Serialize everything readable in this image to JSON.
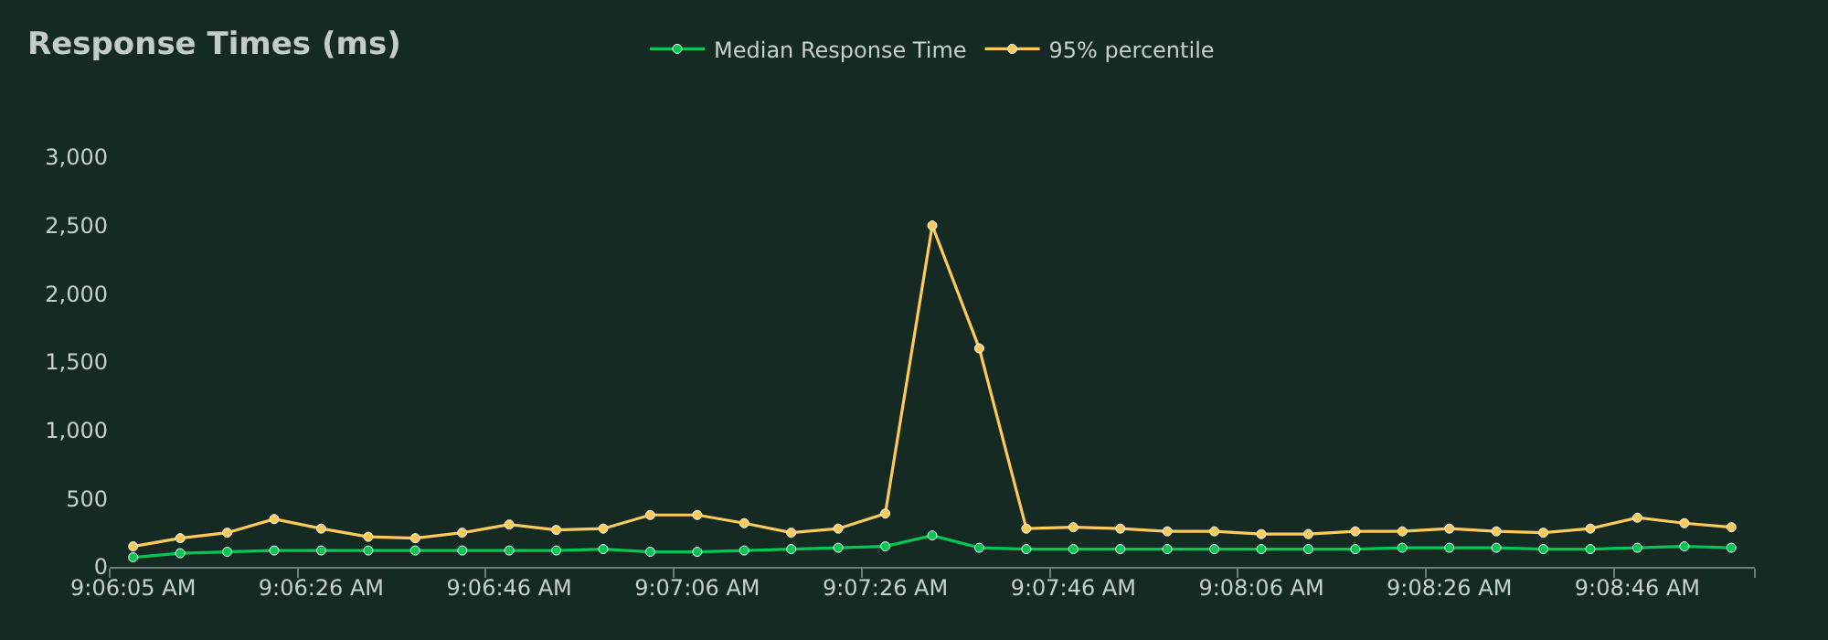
{
  "chart_data": {
    "type": "line",
    "title": "Response Times (ms)",
    "categories": [
      "9:06:05 AM",
      null,
      null,
      null,
      "9:06:26 AM",
      null,
      null,
      null,
      "9:06:46 AM",
      null,
      null,
      null,
      "9:07:06 AM",
      null,
      null,
      null,
      "9:07:26 AM",
      null,
      null,
      null,
      "9:07:46 AM",
      null,
      null,
      null,
      "9:08:06 AM",
      null,
      null,
      null,
      "9:08:26 AM",
      null,
      null,
      null,
      "9:08:46 AM",
      null,
      null
    ],
    "series": [
      {
        "name": "Median Response Time",
        "color": "#00c853",
        "values": [
          70,
          100,
          110,
          120,
          120,
          120,
          120,
          120,
          120,
          120,
          130,
          110,
          110,
          120,
          130,
          140,
          150,
          230,
          140,
          130,
          130,
          130,
          130,
          130,
          130,
          130,
          130,
          140,
          140,
          140,
          130,
          130,
          140,
          150,
          140
        ]
      },
      {
        "name": "95% percentile",
        "color": "#ffca5a",
        "values": [
          150,
          210,
          250,
          350,
          280,
          220,
          210,
          250,
          310,
          270,
          280,
          380,
          380,
          320,
          250,
          280,
          390,
          2500,
          1600,
          280,
          290,
          280,
          260,
          260,
          240,
          240,
          260,
          260,
          280,
          260,
          250,
          280,
          360,
          320,
          290
        ]
      }
    ],
    "ylim": [
      0,
      3000
    ],
    "yticks": [
      0,
      500,
      {
        "value": 1000,
        "label": "1,000"
      },
      {
        "value": 1500,
        "label": "1,500"
      },
      {
        "value": 2000,
        "label": "2,000"
      },
      {
        "value": 2500,
        "label": "2,500"
      },
      {
        "value": 3000,
        "label": "3,000"
      }
    ],
    "grid": false,
    "legend": "top",
    "marker": "circle",
    "line_style": "solid"
  }
}
